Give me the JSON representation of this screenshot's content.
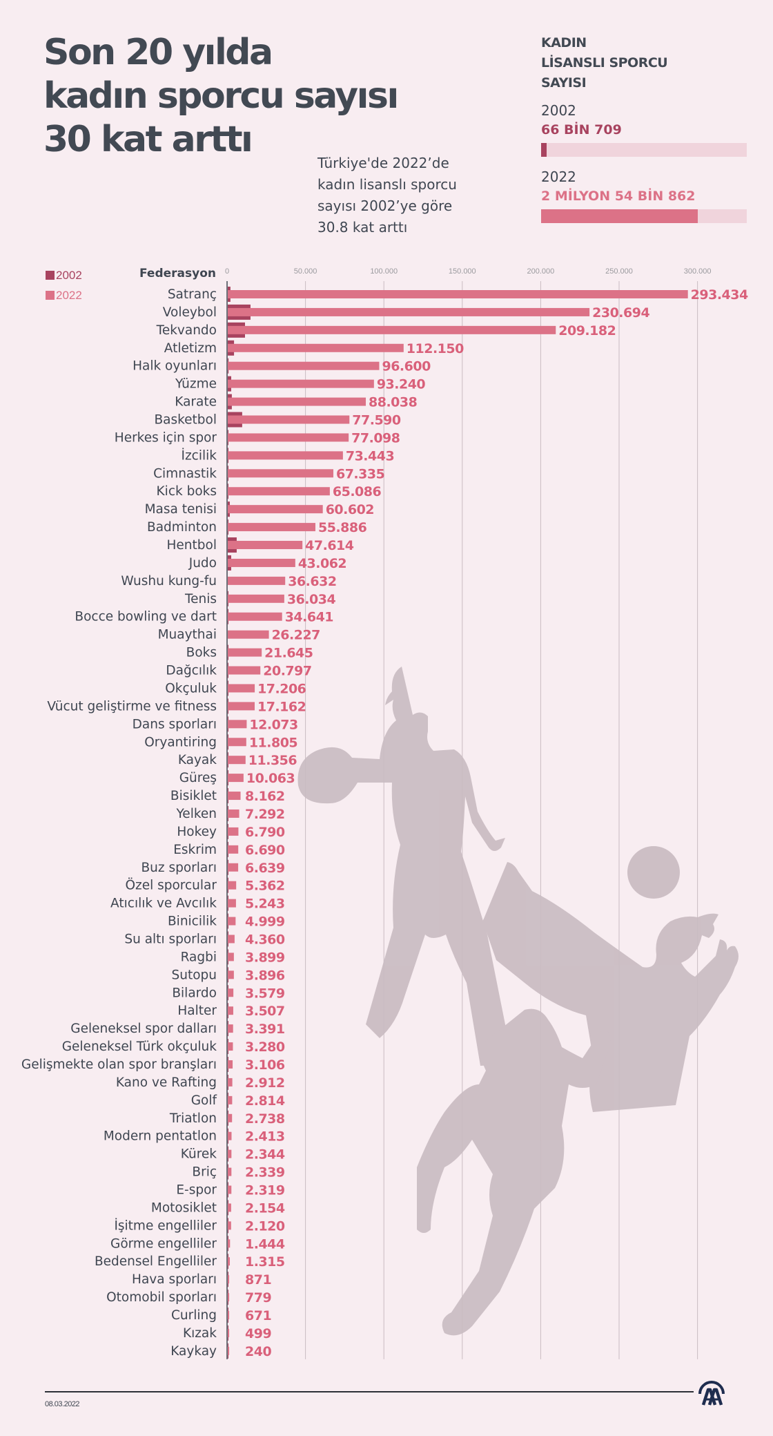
{
  "header": {
    "title_lines": [
      "Son 20 yılda",
      "kadın sporcu sayısı",
      "30 kat arttı"
    ],
    "subtitle_lines": [
      "Türkiye'de 2022’de",
      "kadın lisanslı sporcu",
      "sayısı 2002’ye göre",
      "30.8 kat arttı"
    ]
  },
  "summary": {
    "title_lines": [
      "KADIN",
      "LİSANSLI SPORCU",
      "SAYISI"
    ],
    "items": [
      {
        "year": "2002",
        "value_text": "66 BİN 709",
        "value": 66709,
        "color": "#a8435f"
      },
      {
        "year": "2022",
        "value_text": "2 MİLYON 54 BİN 862",
        "value": 2054862,
        "color": "#dc7287"
      }
    ],
    "scale_max": 2700000
  },
  "legend": [
    {
      "label": "2002",
      "color": "#a8435f"
    },
    {
      "label": "2022",
      "color": "#dc7287"
    }
  ],
  "colors": {
    "bar_2002": "#a8435f",
    "bar_2022": "#dc7287",
    "value_label": "#d9607a",
    "category_text": "#3f4651",
    "grid": "#c9bcc2",
    "axis": "#3f4651",
    "tick_text": "#9a9a9e"
  },
  "chart_data": {
    "type": "bar",
    "orientation": "horizontal",
    "title": "Son 20 yılda kadın sporcu sayısı 30 kat arttı",
    "category_header": "Federasyon",
    "xlim": [
      0,
      300000
    ],
    "x_ticks": [
      0,
      50000,
      100000,
      150000,
      200000,
      250000,
      300000
    ],
    "x_tick_labels": [
      "0",
      "50.000",
      "100.000",
      "150.000",
      "200.000",
      "250.000",
      "300.000"
    ],
    "grid": true,
    "legend_position": "top-left",
    "series": [
      {
        "name": "2002",
        "values": [
          1700,
          14500,
          11000,
          4000,
          500,
          2200,
          2600,
          9200,
          300,
          300,
          100,
          100,
          1300,
          100,
          5700,
          2200,
          0,
          400,
          200,
          0,
          300,
          300,
          200,
          200,
          100,
          100,
          100,
          100,
          100,
          100,
          100,
          100,
          100,
          100,
          100,
          100,
          100,
          100,
          100,
          100,
          100,
          100,
          100,
          100,
          100,
          100,
          100,
          100,
          100,
          100,
          100,
          100,
          100,
          100,
          100,
          100,
          100,
          100,
          100,
          100
        ]
      },
      {
        "name": "2022",
        "values": [
          293434,
          230694,
          209182,
          112150,
          96600,
          93240,
          88038,
          77590,
          77098,
          73443,
          67335,
          65086,
          60602,
          55886,
          47614,
          43062,
          36632,
          36034,
          34641,
          26227,
          21645,
          20797,
          17206,
          17162,
          12073,
          11805,
          11356,
          10063,
          8162,
          7292,
          6790,
          6690,
          6639,
          5362,
          5243,
          4999,
          4360,
          3899,
          3896,
          3579,
          3507,
          3391,
          3280,
          3106,
          2912,
          2814,
          2738,
          2413,
          2344,
          2339,
          2319,
          2154,
          2120,
          1444,
          1315,
          871,
          779,
          671,
          499,
          240
        ],
        "labels": [
          "293.434",
          "230.694",
          "209.182",
          "112.150",
          "96.600",
          "93.240",
          "88.038",
          "77.590",
          "77.098",
          "73.443",
          "67.335",
          "65.086",
          "60.602",
          "55.886",
          "47.614",
          "43.062",
          "36.632",
          "36.034",
          "34.641",
          "26.227",
          "21.645",
          "20.797",
          "17.206",
          "17.162",
          "12.073",
          "11.805",
          "11.356",
          "10.063",
          "8.162",
          "7.292",
          "6.790",
          "6.690",
          "6.639",
          "5.362",
          "5.243",
          "4.999",
          "4.360",
          "3.899",
          "3.896",
          "3.579",
          "3.507",
          "3.391",
          "3.280",
          "3.106",
          "2.912",
          "2.814",
          "2.738",
          "2.413",
          "2.344",
          "2.339",
          "2.319",
          "2.154",
          "2.120",
          "1.444",
          "1.315",
          "871",
          "779",
          "671",
          "499",
          "240"
        ]
      }
    ],
    "categories": [
      "Satranç",
      "Voleybol",
      "Tekvando",
      "Atletizm",
      "Halk oyunları",
      "Yüzme",
      "Karate",
      "Basketbol",
      "Herkes için spor",
      "İzcilik",
      "Cimnastik",
      "Kick boks",
      "Masa tenisi",
      "Badminton",
      "Hentbol",
      "Judo",
      "Wushu kung-fu",
      "Tenis",
      "Bocce bowling ve dart",
      "Muaythai",
      "Boks",
      "Dağcılık",
      "Okçuluk",
      "Vücut geliştirme ve fitness",
      "Dans sporları",
      "Oryantiring",
      "Kayak",
      "Güreş",
      "Bisiklet",
      "Yelken",
      "Hokey",
      "Eskrim",
      "Buz sporları",
      "Özel sporcular",
      "Atıcılık ve Avcılık",
      "Binicilik",
      "Su altı sporları",
      "Ragbi",
      "Sutopu",
      "Bilardo",
      "Halter",
      "Geleneksel spor dalları",
      "Geleneksel Türk okçuluk",
      "Gelişmekte olan spor branşları",
      "Kano ve Rafting",
      "Golf",
      "Triatlon",
      "Modern pentatlon",
      "Kürek",
      "Briç",
      "E-spor",
      "Motosiklet",
      "İşitme engelliler",
      "Görme engelliler",
      "Bedensel Engelliler",
      "Hava sporları",
      "Otomobil sporları",
      "Curling",
      "Kızak",
      "Kaykay"
    ]
  },
  "footer": {
    "date": "08.03.2022",
    "logo_text": "AA"
  }
}
